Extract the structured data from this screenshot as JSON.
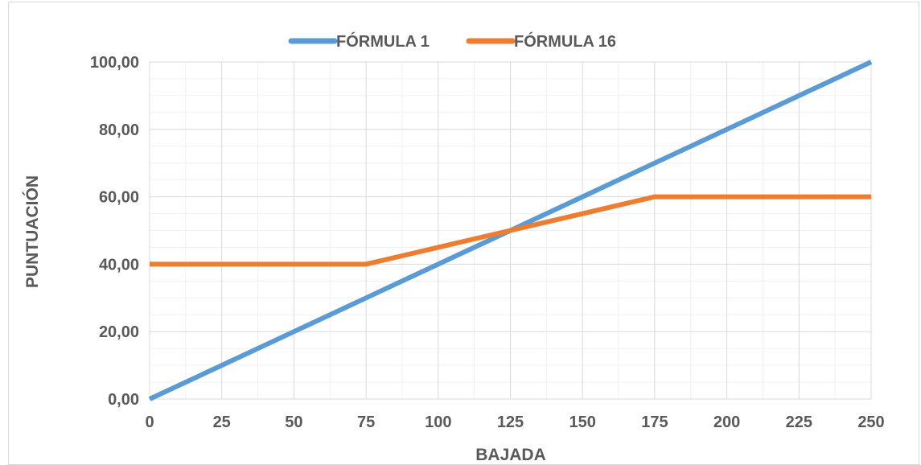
{
  "chart_data": {
    "type": "line",
    "x": [
      0,
      25,
      50,
      75,
      100,
      125,
      150,
      175,
      200,
      225,
      250
    ],
    "series": [
      {
        "name": "FÓRMULA 1",
        "color": "#5b9bd5",
        "values": [
          0,
          10,
          20,
          30,
          40,
          50,
          60,
          70,
          80,
          90,
          100
        ]
      },
      {
        "name": "FÓRMULA 16",
        "color": "#ed7d31",
        "values": [
          40,
          40,
          40,
          40,
          45,
          50,
          55,
          60,
          60,
          60,
          60
        ]
      }
    ],
    "xlabel": "BAJADA",
    "ylabel": "PUNTUACIÓN",
    "xlim": [
      0,
      250
    ],
    "ylim": [
      0,
      100
    ],
    "xticks": [
      0,
      25,
      50,
      75,
      100,
      125,
      150,
      175,
      200,
      225,
      250
    ],
    "xtick_labels": [
      "0",
      "25",
      "50",
      "75",
      "100",
      "125",
      "150",
      "175",
      "200",
      "225",
      "250"
    ],
    "yticks": [
      0,
      20,
      40,
      60,
      80,
      100
    ],
    "ytick_labels": [
      "0,00",
      "20,00",
      "40,00",
      "60,00",
      "80,00",
      "100,00"
    ],
    "grid": true,
    "legend_position": "top-center"
  }
}
